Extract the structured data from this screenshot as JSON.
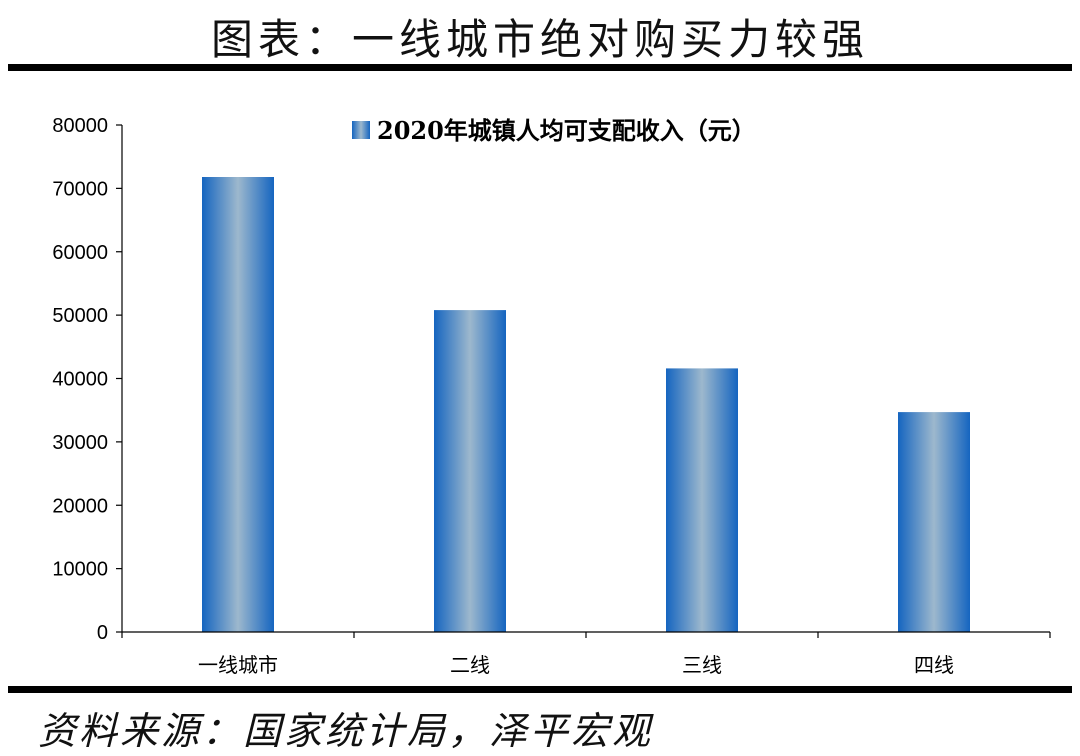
{
  "figure_title": "图表：一线城市绝对购买力较强",
  "source_note": "资料来源：国家统计局，泽平宏观",
  "colors": {
    "bar_edge": "#1565c0",
    "bar_center": "#9db8cd",
    "axis": "#000000"
  },
  "chart_data": {
    "type": "bar",
    "categories": [
      "一线城市",
      "二线",
      "三线",
      "四线"
    ],
    "series": [
      {
        "name": "2020年城镇人均可支配收入（元）",
        "values": [
          71800,
          50800,
          41600,
          34700
        ]
      }
    ],
    "title": "",
    "xlabel": "",
    "ylabel": "",
    "ylim": [
      0,
      80000
    ],
    "yticks": [
      0,
      10000,
      20000,
      30000,
      40000,
      50000,
      60000,
      70000,
      80000
    ],
    "grid": false,
    "legend": "top-center"
  }
}
